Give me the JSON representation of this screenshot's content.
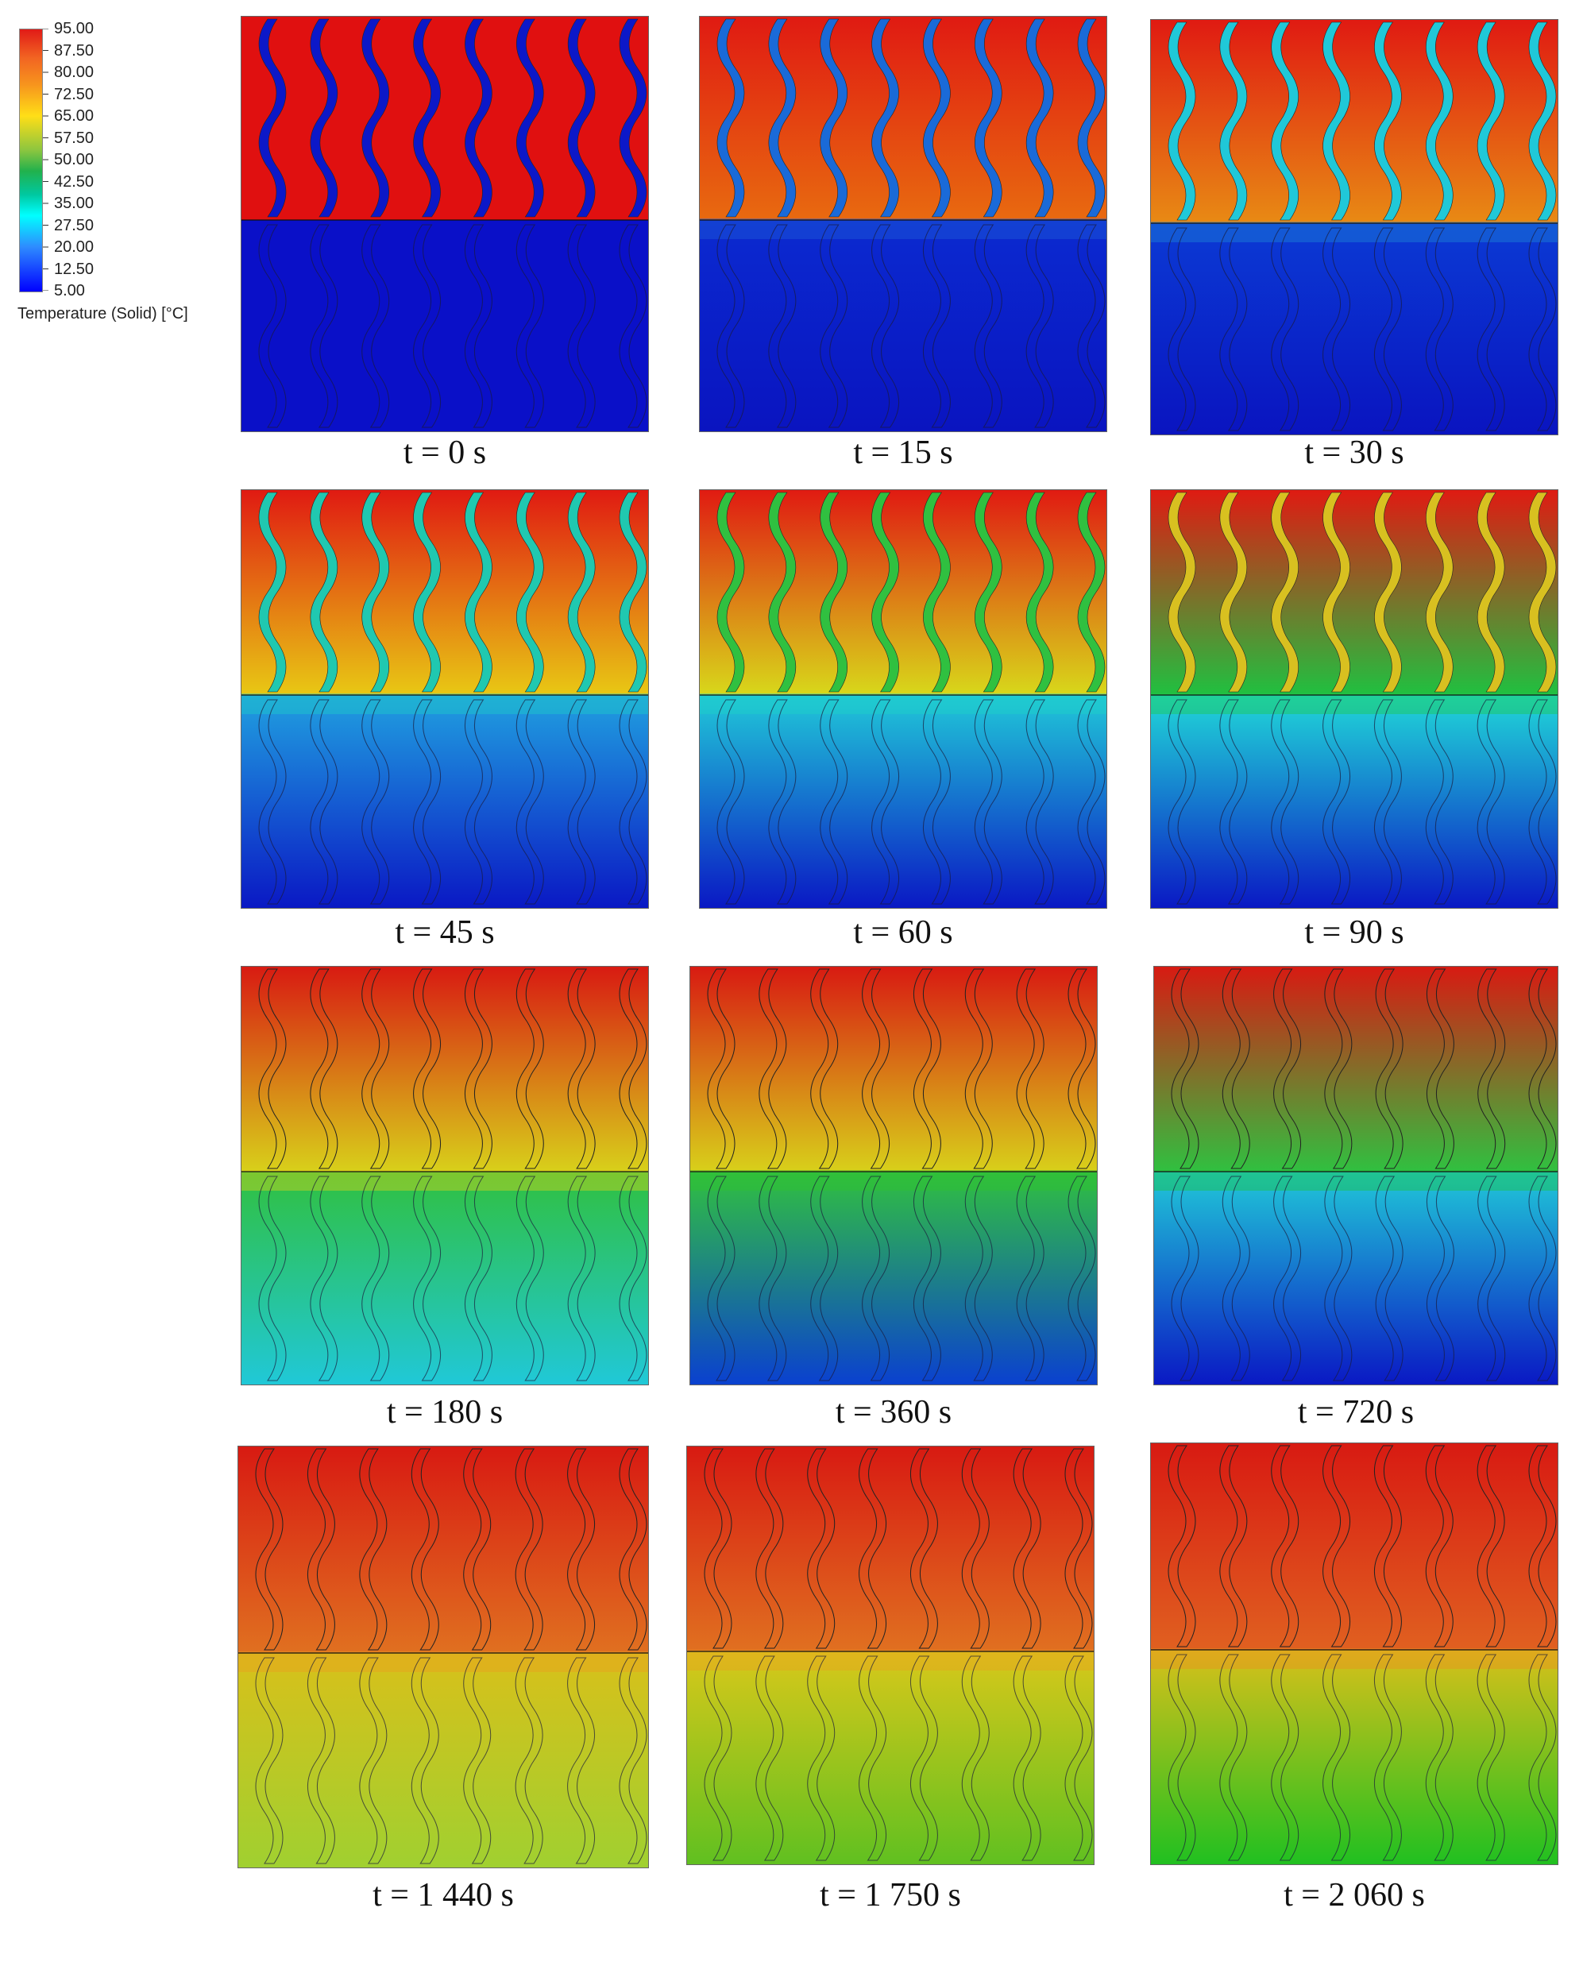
{
  "legend": {
    "title": "Temperature (Solid) [°C]",
    "ticks": [
      "95.00",
      "87.50",
      "80.00",
      "72.50",
      "65.00",
      "57.50",
      "50.00",
      "42.50",
      "35.00",
      "27.50",
      "20.00",
      "12.50",
      "5.00"
    ],
    "colors": [
      "#e11b17",
      "#f26522",
      "#f7941d",
      "#ffde17",
      "#8dc63f",
      "#22b14c",
      "#00c8a0",
      "#00ffff",
      "#2e8bff",
      "#0000ff"
    ]
  },
  "panels": [
    {
      "caption": "t = 0 s"
    },
    {
      "caption": "t = 15 s"
    },
    {
      "caption": "t = 30 s"
    },
    {
      "caption": "t = 45 s"
    },
    {
      "caption": "t = 60 s"
    },
    {
      "caption": "t = 90 s"
    },
    {
      "caption": "t = 180 s"
    },
    {
      "caption": "t = 360 s"
    },
    {
      "caption": "t = 720 s"
    },
    {
      "caption": "t = 1 440 s"
    },
    {
      "caption": "t = 1 750 s"
    },
    {
      "caption": "t = 2 060 s"
    }
  ]
}
